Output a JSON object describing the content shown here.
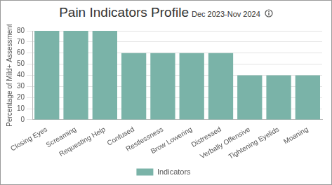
{
  "chart_data": {
    "type": "bar",
    "title": "Pain Indicators Profile",
    "subtitle": "Dec 2023-Nov 2024",
    "y_label": "Percentage of Mild+ Assessment",
    "categories": [
      "Closing Eyes",
      "Screaming",
      "Requesting Help",
      "Confused",
      "Restlessness",
      "Brow Lowering",
      "Distressed",
      "Verbally Offensive",
      "Tightening Eyelids",
      "Moaning"
    ],
    "series": [
      {
        "name": "Indicators",
        "color": "#7ab3a8",
        "values": [
          80,
          80,
          80,
          60,
          60,
          60,
          60,
          40,
          40,
          40
        ]
      }
    ],
    "ylim": [
      0,
      80
    ],
    "yticks": [
      0,
      10,
      20,
      30,
      40,
      50,
      60,
      70,
      80
    ],
    "grid": true,
    "legend": "bottom"
  }
}
